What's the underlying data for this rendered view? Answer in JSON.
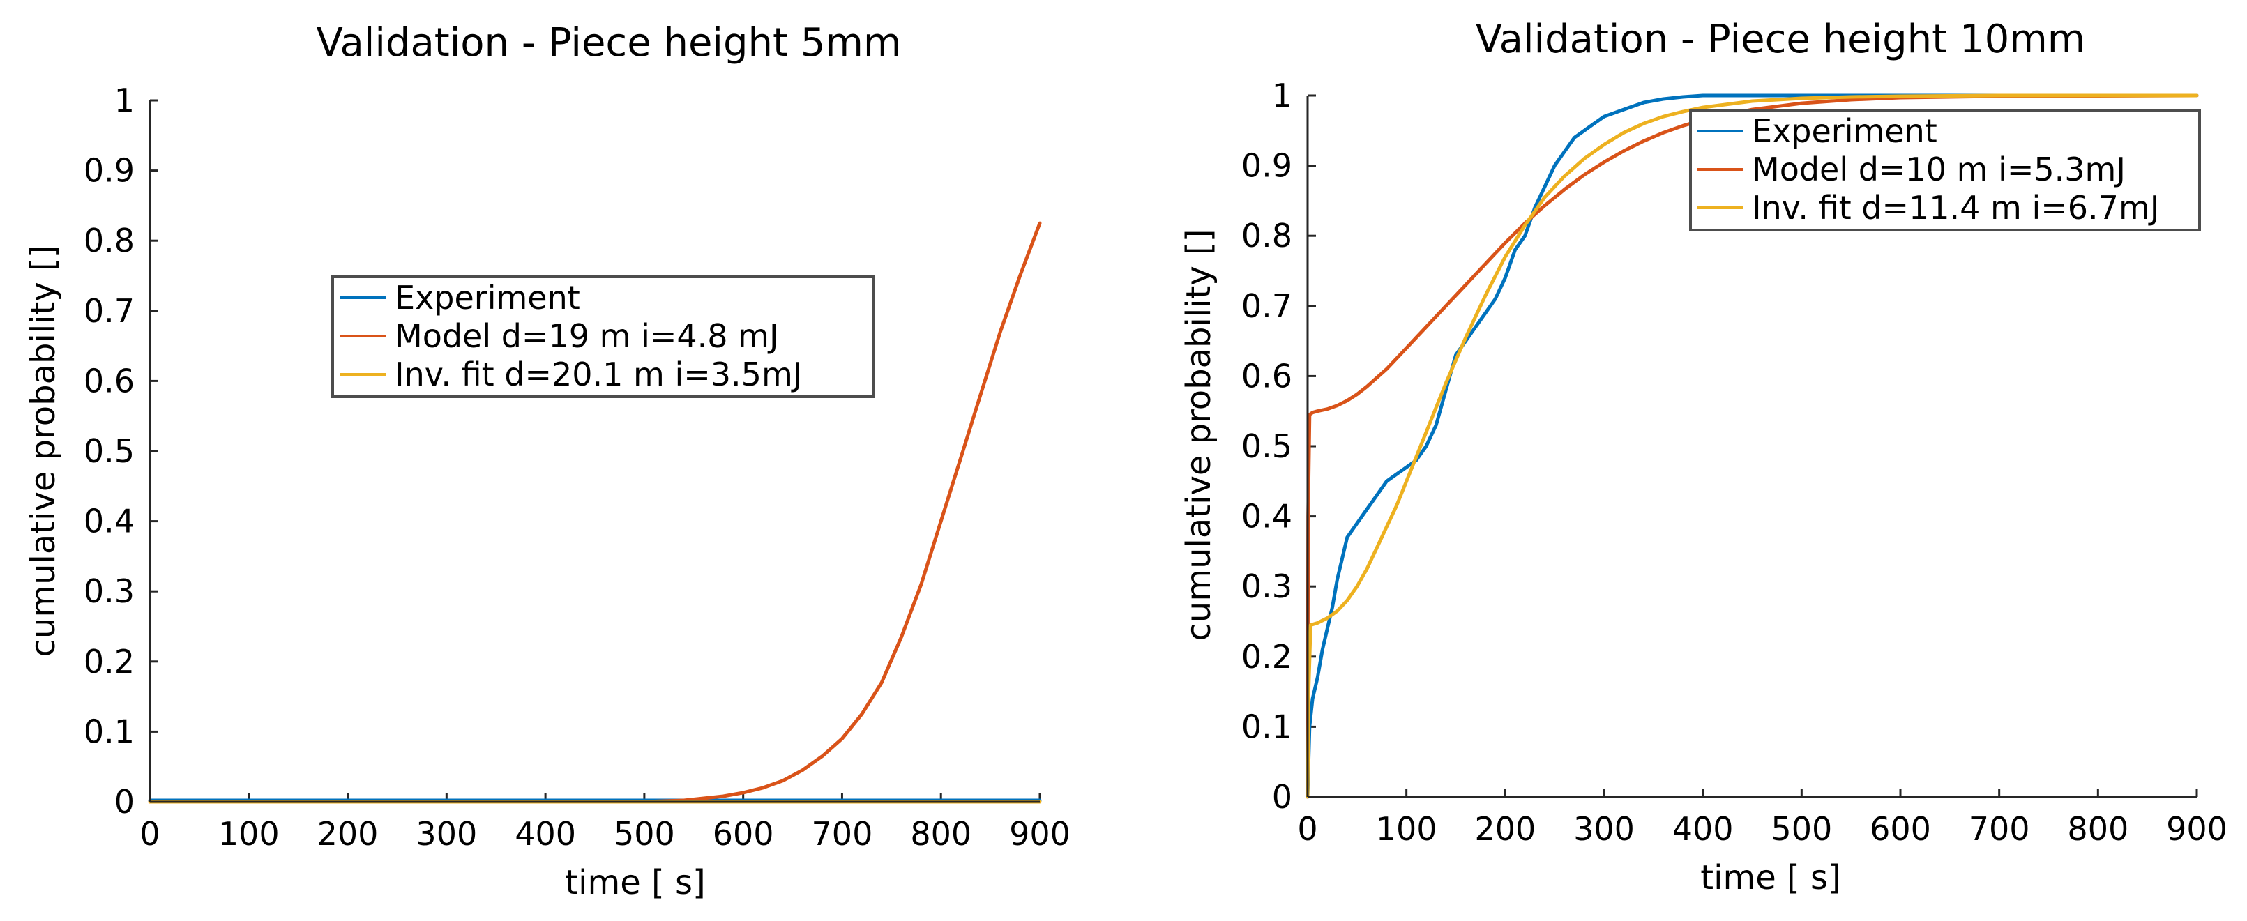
{
  "chart_data": [
    {
      "type": "line",
      "title": "Validation - Piece height 5mm",
      "xlabel": "time [  s]",
      "ylabel": "cumulative probability []",
      "xlim": [
        0,
        900
      ],
      "ylim": [
        0,
        1
      ],
      "xticks": [
        "0",
        "100",
        "200",
        "300",
        "400",
        "500",
        "600",
        "700",
        "800",
        "900"
      ],
      "yticks": [
        "0",
        "0.1",
        "0.2",
        "0.3",
        "0.4",
        "0.5",
        "0.6",
        "0.7",
        "0.8",
        "0.9",
        "1"
      ],
      "legend_position": "center",
      "grid": false,
      "series": [
        {
          "name": "Experiment",
          "color": "#0072bd",
          "x": [
            0,
            900
          ],
          "y": [
            0.002,
            0.002
          ]
        },
        {
          "name": "Model d=19  m i=4.8 mJ",
          "color": "#d95319",
          "x": [
            0,
            500,
            540,
            580,
            600,
            620,
            640,
            660,
            680,
            700,
            720,
            740,
            760,
            780,
            800,
            820,
            840,
            860,
            880,
            900
          ],
          "y": [
            0,
            0,
            0.002,
            0.008,
            0.013,
            0.02,
            0.03,
            0.045,
            0.065,
            0.09,
            0.125,
            0.17,
            0.235,
            0.31,
            0.4,
            0.49,
            0.58,
            0.67,
            0.75,
            0.825
          ]
        },
        {
          "name": "Inv. fit d=20.1  m i=3.5mJ",
          "color": "#edb120",
          "x": [
            0,
            900
          ],
          "y": [
            0,
            0
          ]
        }
      ]
    },
    {
      "type": "line",
      "title": "Validation - Piece height 10mm",
      "xlabel": "time [  s]",
      "ylabel": "cumulative probability []",
      "xlim": [
        0,
        900
      ],
      "ylim": [
        0,
        1
      ],
      "xticks": [
        "0",
        "100",
        "200",
        "300",
        "400",
        "500",
        "600",
        "700",
        "800",
        "900"
      ],
      "yticks": [
        "0",
        "0.1",
        "0.2",
        "0.3",
        "0.4",
        "0.5",
        "0.6",
        "0.7",
        "0.8",
        "0.9",
        "1"
      ],
      "legend_position": "top-right",
      "grid": false,
      "series": [
        {
          "name": "Experiment",
          "color": "#0072bd",
          "x": [
            0,
            2,
            5,
            10,
            15,
            20,
            25,
            30,
            35,
            40,
            50,
            60,
            70,
            80,
            90,
            100,
            110,
            120,
            130,
            140,
            150,
            160,
            170,
            180,
            190,
            200,
            210,
            220,
            230,
            240,
            250,
            260,
            270,
            280,
            290,
            300,
            320,
            340,
            360,
            380,
            400,
            450,
            500,
            900
          ],
          "y": [
            0,
            0.1,
            0.14,
            0.17,
            0.21,
            0.24,
            0.27,
            0.31,
            0.34,
            0.37,
            0.39,
            0.41,
            0.43,
            0.45,
            0.46,
            0.47,
            0.48,
            0.5,
            0.53,
            0.58,
            0.63,
            0.65,
            0.67,
            0.69,
            0.71,
            0.74,
            0.78,
            0.8,
            0.84,
            0.87,
            0.9,
            0.92,
            0.94,
            0.95,
            0.96,
            0.97,
            0.98,
            0.99,
            0.995,
            0.998,
            1.0,
            1.0,
            1.0,
            1.0
          ]
        },
        {
          "name": "Model d=10  m i=5.3mJ",
          "color": "#d95319",
          "x": [
            0,
            0.5,
            2,
            5,
            10,
            20,
            30,
            40,
            50,
            60,
            80,
            100,
            120,
            140,
            160,
            180,
            200,
            220,
            240,
            260,
            280,
            300,
            320,
            340,
            360,
            380,
            400,
            450,
            500,
            550,
            600,
            700,
            900
          ],
          "y": [
            0,
            0.4,
            0.545,
            0.548,
            0.55,
            0.553,
            0.558,
            0.565,
            0.574,
            0.585,
            0.61,
            0.64,
            0.67,
            0.7,
            0.73,
            0.76,
            0.79,
            0.818,
            0.843,
            0.866,
            0.887,
            0.905,
            0.921,
            0.935,
            0.947,
            0.957,
            0.965,
            0.98,
            0.989,
            0.994,
            0.997,
            0.999,
            1.0
          ]
        },
        {
          "name": "Inv. fit d=11.4  m i=6.7mJ",
          "color": "#edb120",
          "x": [
            0,
            1,
            3,
            10,
            20,
            30,
            40,
            50,
            60,
            70,
            80,
            90,
            100,
            120,
            140,
            160,
            180,
            200,
            220,
            240,
            260,
            280,
            300,
            320,
            340,
            360,
            380,
            400,
            450,
            500,
            550,
            600,
            700,
            900
          ],
          "y": [
            0,
            0.15,
            0.245,
            0.248,
            0.255,
            0.265,
            0.28,
            0.3,
            0.325,
            0.355,
            0.385,
            0.415,
            0.45,
            0.52,
            0.59,
            0.655,
            0.715,
            0.77,
            0.815,
            0.855,
            0.885,
            0.91,
            0.93,
            0.947,
            0.96,
            0.97,
            0.977,
            0.983,
            0.992,
            0.996,
            0.998,
            0.999,
            1.0,
            1.0
          ]
        }
      ]
    }
  ]
}
